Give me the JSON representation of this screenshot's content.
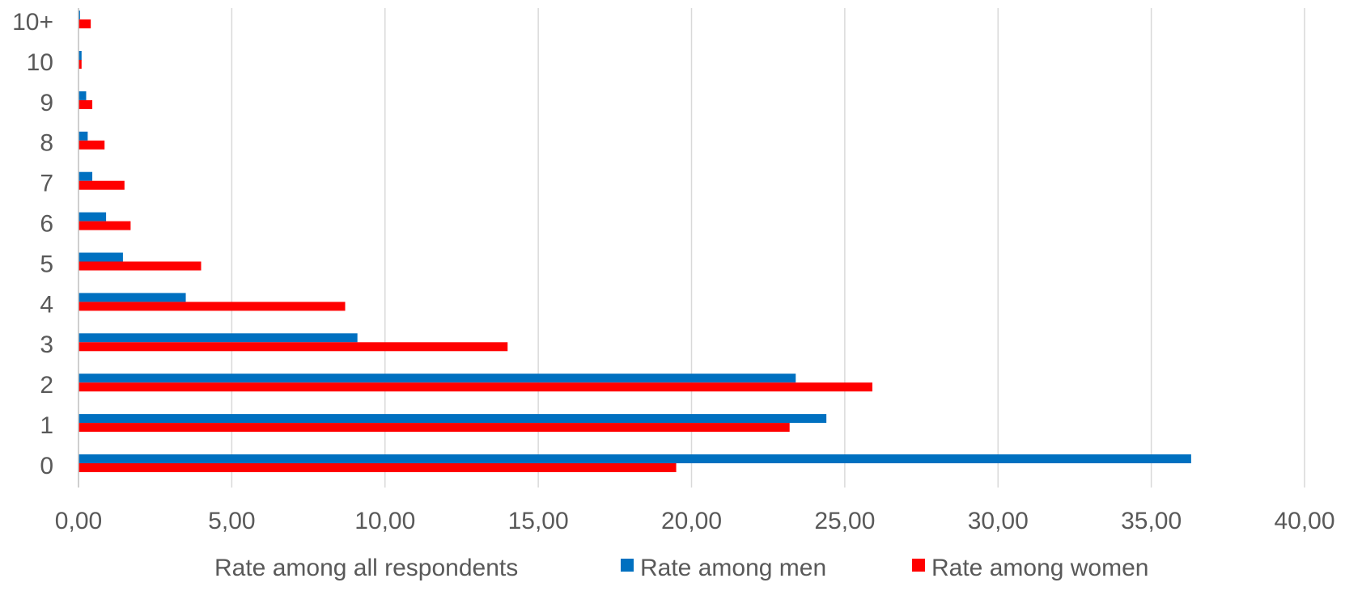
{
  "chart_data": {
    "type": "bar",
    "orientation": "horizontal",
    "categories": [
      "0",
      "1",
      "2",
      "3",
      "4",
      "5",
      "6",
      "7",
      "8",
      "9",
      "10",
      "10+"
    ],
    "series": [
      {
        "name": "Rate among all respondents",
        "values": [
          null,
          null,
          null,
          null,
          null,
          null,
          null,
          null,
          null,
          null,
          null,
          null
        ]
      },
      {
        "name": "Rate among men",
        "color": "#0070C0",
        "values": [
          36.3,
          24.4,
          23.4,
          9.1,
          3.5,
          1.45,
          0.9,
          0.45,
          0.3,
          0.25,
          0.1,
          0.05
        ]
      },
      {
        "name": "Rate among women",
        "color": "#FF0000",
        "values": [
          19.5,
          23.2,
          25.9,
          14.0,
          8.7,
          4.0,
          1.7,
          1.5,
          0.85,
          0.45,
          0.1,
          0.4
        ]
      }
    ],
    "xlim": [
      0,
      40
    ],
    "x_ticks": [
      "0,00",
      "5,00",
      "10,00",
      "15,00",
      "20,00",
      "25,00",
      "30,00",
      "35,00",
      "40,00"
    ],
    "grid": "vertical",
    "legend": "bottom"
  }
}
